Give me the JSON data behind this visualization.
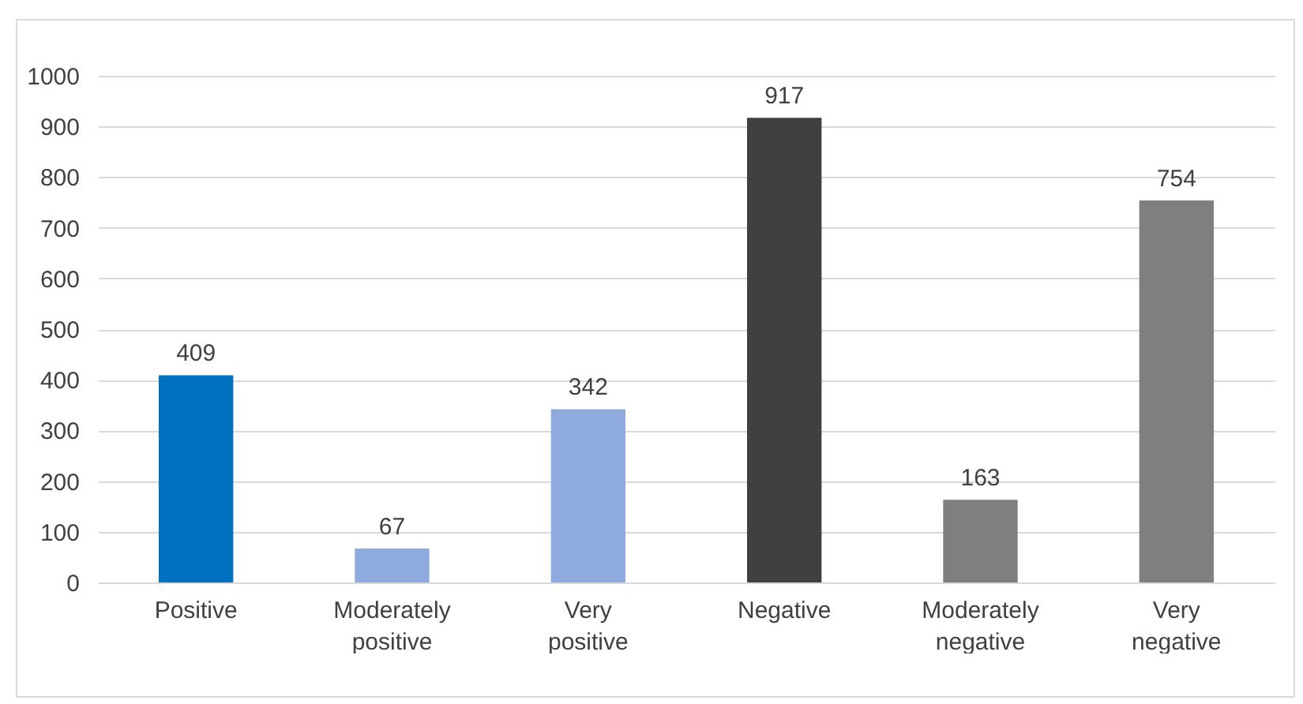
{
  "chart_data": {
    "type": "bar",
    "categories": [
      "Positive",
      "Moderately positive",
      "Very positive",
      "Negative",
      "Moderately negative",
      "Very negative"
    ],
    "values": [
      409,
      67,
      342,
      917,
      163,
      754
    ],
    "colors": [
      "#0070c0",
      "#8faadc",
      "#8faadc",
      "#404040",
      "#7f7f7f",
      "#7f7f7f"
    ],
    "ylim": [
      0,
      1000
    ],
    "yticks": [
      0,
      100,
      200,
      300,
      400,
      500,
      600,
      700,
      800,
      900,
      1000
    ],
    "grid": "y",
    "data_labels": true
  }
}
